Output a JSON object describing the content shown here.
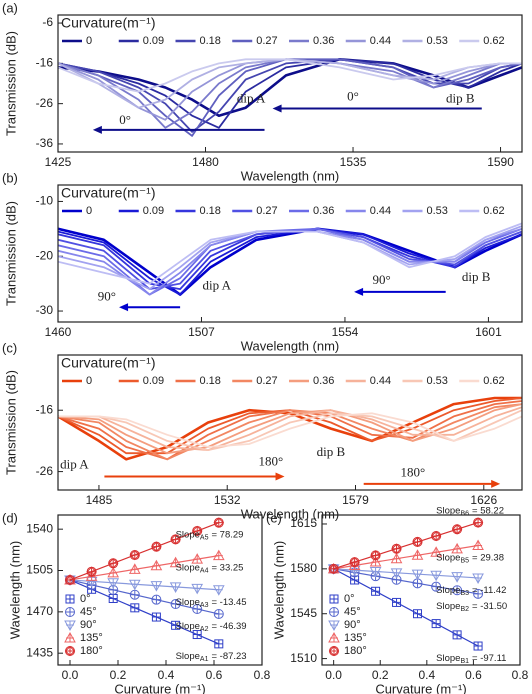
{
  "chart_data": [
    {
      "type": "line",
      "panel_label": "(a)",
      "xlabel": "Wavelength (nm)",
      "ylabel": "Transmission (dB)",
      "legend_title": "Curvature(m⁻¹)",
      "xlim": [
        1425,
        1598
      ],
      "xticks": [
        1425,
        1480,
        1535,
        1590
      ],
      "ylim": [
        -38,
        -4
      ],
      "yticks": [
        -6,
        -16,
        -26,
        -36
      ],
      "annotations": [
        "dip A",
        "dip B",
        "0°",
        "0°"
      ],
      "x": [
        1425,
        1440,
        1455,
        1465,
        1475,
        1485,
        1495,
        1510,
        1530,
        1550,
        1565,
        1578,
        1590,
        1598
      ],
      "series": [
        {
          "name": "0",
          "color": "#0d0d8a",
          "values": [
            -17,
            -18,
            -20,
            -22,
            -25,
            -29,
            -27,
            -19,
            -15,
            -16,
            -19,
            -22,
            -19,
            -17
          ]
        },
        {
          "name": "0.09",
          "color": "#2b2ba0",
          "values": [
            -16,
            -18,
            -21,
            -24,
            -29,
            -32,
            -23,
            -17,
            -15,
            -16,
            -20,
            -22,
            -18,
            -16
          ]
        },
        {
          "name": "0.18",
          "color": "#4545b0",
          "values": [
            -16,
            -18,
            -22,
            -26,
            -33,
            -28,
            -20,
            -16,
            -15,
            -17,
            -21,
            -21,
            -17,
            -16
          ]
        },
        {
          "name": "0.27",
          "color": "#5f5fbf",
          "values": [
            -16,
            -19,
            -23,
            -29,
            -34,
            -24,
            -18,
            -15,
            -15,
            -17,
            -22,
            -20,
            -17,
            -16
          ]
        },
        {
          "name": "0.36",
          "color": "#7a7acc",
          "values": [
            -16,
            -19,
            -25,
            -32,
            -28,
            -21,
            -17,
            -15,
            -16,
            -18,
            -22,
            -19,
            -16,
            -16
          ]
        },
        {
          "name": "0.44",
          "color": "#9595d8",
          "values": [
            -16,
            -20,
            -27,
            -30,
            -23,
            -19,
            -16,
            -15,
            -16,
            -19,
            -21,
            -18,
            -16,
            -16
          ]
        },
        {
          "name": "0.53",
          "color": "#b0b0e3",
          "values": [
            -16,
            -21,
            -27,
            -25,
            -20,
            -17,
            -16,
            -15,
            -16,
            -19,
            -20,
            -17,
            -16,
            -16
          ]
        },
        {
          "name": "0.62",
          "color": "#cacaee",
          "values": [
            -17,
            -21,
            -23,
            -21,
            -18,
            -16,
            -15,
            -15,
            -17,
            -20,
            -19,
            -17,
            -16,
            -16
          ]
        }
      ]
    },
    {
      "type": "line",
      "panel_label": "(b)",
      "xlabel": "Wavelength (nm)",
      "ylabel": "Transmission (dB)",
      "legend_title": "Curvature(m⁻¹)",
      "xlim": [
        1460,
        1612
      ],
      "xticks": [
        1460,
        1507,
        1554,
        1601
      ],
      "ylim": [
        -32,
        -7
      ],
      "yticks": [
        -10,
        -20,
        -30
      ],
      "annotations": [
        "dip A",
        "dip B",
        "90°",
        "90°"
      ],
      "x": [
        1460,
        1475,
        1490,
        1500,
        1510,
        1525,
        1545,
        1560,
        1575,
        1590,
        1600,
        1612
      ],
      "series": [
        {
          "name": "0",
          "color": "#0000cc",
          "values": [
            -15,
            -17,
            -23,
            -27,
            -22,
            -17,
            -15,
            -16,
            -19,
            -22,
            -19,
            -16
          ]
        },
        {
          "name": "0.09",
          "color": "#1a1ad6",
          "values": [
            -15.5,
            -17.5,
            -24,
            -27,
            -21,
            -16.5,
            -15,
            -16,
            -19.5,
            -22,
            -18.5,
            -16
          ]
        },
        {
          "name": "0.18",
          "color": "#3535dd",
          "values": [
            -16,
            -18,
            -25,
            -26,
            -20,
            -16,
            -15,
            -16.5,
            -20,
            -22,
            -18,
            -15.5
          ]
        },
        {
          "name": "0.27",
          "color": "#5050e3",
          "values": [
            -17,
            -19,
            -26,
            -25,
            -19,
            -16,
            -15,
            -16.5,
            -20.5,
            -21.5,
            -18,
            -15.5
          ]
        },
        {
          "name": "0.36",
          "color": "#6b6be8",
          "values": [
            -18,
            -20,
            -27,
            -24,
            -18,
            -15.5,
            -15,
            -17,
            -21,
            -21,
            -17.5,
            -15
          ]
        },
        {
          "name": "0.44",
          "color": "#8686ec",
          "values": [
            -19,
            -21,
            -27,
            -23,
            -18,
            -15.5,
            -15.5,
            -17,
            -21,
            -21,
            -17,
            -15
          ]
        },
        {
          "name": "0.53",
          "color": "#a2a2f0",
          "values": [
            -20,
            -22,
            -26,
            -22,
            -17.5,
            -15.5,
            -15.5,
            -17.5,
            -21.5,
            -20.5,
            -17,
            -14.5
          ]
        },
        {
          "name": "0.62",
          "color": "#bdbdf4",
          "values": [
            -21,
            -23,
            -25,
            -21,
            -17,
            -15.5,
            -15.5,
            -17.5,
            -22,
            -20,
            -16.5,
            -14
          ]
        }
      ]
    },
    {
      "type": "line",
      "panel_label": "(c)",
      "xlabel": "Wavelength (nm)",
      "ylabel": "Transmission (dB)",
      "legend_title": "Curvature(m⁻¹)",
      "xlim": [
        1470,
        1640
      ],
      "xticks": [
        1485,
        1532,
        1579,
        1626
      ],
      "ylim": [
        -29,
        -7
      ],
      "yticks": [
        -16,
        -26
      ],
      "annotations": [
        "dip A",
        "dip B",
        "180°",
        "180°"
      ],
      "x": [
        1470,
        1485,
        1495,
        1510,
        1525,
        1540,
        1555,
        1570,
        1585,
        1600,
        1615,
        1630,
        1640
      ],
      "series": [
        {
          "name": "0",
          "color": "#e8400c",
          "values": [
            -17,
            -21,
            -24,
            -22,
            -18,
            -16,
            -16.5,
            -19,
            -21,
            -18,
            -15,
            -14,
            -14
          ]
        },
        {
          "name": "0.09",
          "color": "#ec5a2c",
          "values": [
            -17,
            -20,
            -23,
            -23,
            -19,
            -16.5,
            -16,
            -18,
            -21,
            -19,
            -16,
            -14.5,
            -14
          ]
        },
        {
          "name": "0.18",
          "color": "#ef7048",
          "values": [
            -17,
            -19,
            -22,
            -24,
            -20,
            -17,
            -16,
            -17,
            -20,
            -20.5,
            -17,
            -15,
            -14.5
          ]
        },
        {
          "name": "0.27",
          "color": "#f28762",
          "values": [
            -17,
            -18,
            -21,
            -24,
            -21,
            -18,
            -16,
            -16.5,
            -19,
            -21,
            -18,
            -15.5,
            -15
          ]
        },
        {
          "name": "0.36",
          "color": "#f49d7e",
          "values": [
            -17,
            -17.5,
            -20,
            -23,
            -22,
            -19,
            -16.5,
            -16,
            -18,
            -21,
            -19,
            -16,
            -15
          ]
        },
        {
          "name": "0.44",
          "color": "#f6b29a",
          "values": [
            -17,
            -17,
            -19,
            -22,
            -22.5,
            -20,
            -17,
            -16,
            -17.5,
            -20,
            -20,
            -17,
            -15.5
          ]
        },
        {
          "name": "0.53",
          "color": "#f8c7b5",
          "values": [
            -17,
            -17,
            -18,
            -21,
            -22.5,
            -21,
            -18,
            -16.5,
            -17,
            -19,
            -21,
            -18,
            -16
          ]
        },
        {
          "name": "0.62",
          "color": "#fadbd0",
          "values": [
            -17,
            -17,
            -17.5,
            -20,
            -22,
            -21.5,
            -19,
            -17,
            -16.5,
            -18,
            -21,
            -19,
            -17
          ]
        }
      ]
    },
    {
      "type": "scatter",
      "panel_label": "(d)",
      "xlabel": "Curvature (m⁻¹)",
      "ylabel": "Wavelength (nm)",
      "xlim": [
        -0.05,
        0.8
      ],
      "xticks": [
        {
          "value": 0,
          "label": "0.0"
        },
        0.2,
        0.4,
        0.6,
        0.8
      ],
      "ylim": [
        1425,
        1552
      ],
      "yticks": [
        1435,
        1470,
        1505,
        1540
      ],
      "x": [
        0,
        0.09,
        0.18,
        0.27,
        0.36,
        0.44,
        0.53,
        0.62
      ],
      "series": [
        {
          "name": "0°",
          "color": "#2f3fc8",
          "marker": "square",
          "fit_name": "Slope",
          "fit_sub": "A1",
          "fit_label": "= -87.23",
          "values": [
            1497,
            1489.1,
            1481.3,
            1473.4,
            1465.6,
            1458.6,
            1450.8,
            1442.9
          ]
        },
        {
          "name": "45°",
          "color": "#5566cc",
          "marker": "circle",
          "fit_name": "Slope",
          "fit_sub": "A2",
          "fit_label": "= -46.39",
          "values": [
            1497,
            1492.8,
            1488.6,
            1484.5,
            1480.3,
            1476.6,
            1472.4,
            1468.2
          ]
        },
        {
          "name": "90°",
          "color": "#8899dd",
          "marker": "tri-down",
          "fit_name": "Slope",
          "fit_sub": "A3",
          "fit_label": "= -13.45",
          "values": [
            1497,
            1495.8,
            1494.6,
            1493.4,
            1492.2,
            1491.1,
            1489.9,
            1488.7
          ]
        },
        {
          "name": "135°",
          "color": "#ee6666",
          "marker": "tri-up",
          "fit_name": "Slope",
          "fit_sub": "A4",
          "fit_label": "= 33.25",
          "values": [
            1497,
            1500,
            1503,
            1506,
            1509,
            1511.6,
            1514.6,
            1517.6
          ]
        },
        {
          "name": "180°",
          "color": "#d83030",
          "marker": "diamond",
          "fit_name": "Slope",
          "fit_sub": "A5",
          "fit_label": "= 78.29",
          "values": [
            1497,
            1504,
            1511.1,
            1518.1,
            1525.2,
            1531.4,
            1538.5,
            1545.5
          ]
        }
      ]
    },
    {
      "type": "scatter",
      "panel_label": "(e)",
      "xlabel": "Curvature (m⁻¹)",
      "ylabel": "Wavelength (nm)",
      "xlim": [
        -0.05,
        0.8
      ],
      "xticks": [
        {
          "value": 0,
          "label": "0.0"
        },
        0.2,
        0.4,
        0.6,
        0.8
      ],
      "ylim": [
        1505,
        1622
      ],
      "yticks": [
        1510,
        1545,
        1580,
        1615
      ],
      "x": [
        0,
        0.09,
        0.18,
        0.27,
        0.36,
        0.44,
        0.53,
        0.62
      ],
      "series": [
        {
          "name": "0°",
          "color": "#2f3fc8",
          "marker": "square",
          "fit_name": "Slope",
          "fit_sub": "B1",
          "fit_label": "= -97.11",
          "values": [
            1580,
            1571.3,
            1562.5,
            1553.8,
            1545,
            1537.3,
            1528.5,
            1519.8
          ]
        },
        {
          "name": "45°",
          "color": "#5566cc",
          "marker": "circle",
          "fit_name": "Slope",
          "fit_sub": "B2",
          "fit_label": "= -31.50",
          "values": [
            1580,
            1577.2,
            1574.3,
            1571.5,
            1568.7,
            1566.1,
            1563.3,
            1560.5
          ]
        },
        {
          "name": "90°",
          "color": "#8899dd",
          "marker": "tri-down",
          "fit_name": "Slope",
          "fit_sub": "B3",
          "fit_label": "= -11.42",
          "values": [
            1580,
            1579,
            1577.9,
            1576.9,
            1575.9,
            1575,
            1573.9,
            1572.9
          ]
        },
        {
          "name": "135°",
          "color": "#ee6666",
          "marker": "tri-up",
          "fit_name": "Slope",
          "fit_sub": "B5",
          "fit_label": "= 29.38",
          "values": [
            1580,
            1582.6,
            1585.3,
            1587.9,
            1590.6,
            1592.9,
            1595.6,
            1598.2
          ]
        },
        {
          "name": "180°",
          "color": "#d83030",
          "marker": "diamond",
          "fit_name": "Slope",
          "fit_sub": "B6",
          "fit_label": "= 58.22",
          "values": [
            1580,
            1585.2,
            1590.5,
            1595.7,
            1601,
            1605.6,
            1610.9,
            1616.1
          ]
        }
      ]
    }
  ]
}
